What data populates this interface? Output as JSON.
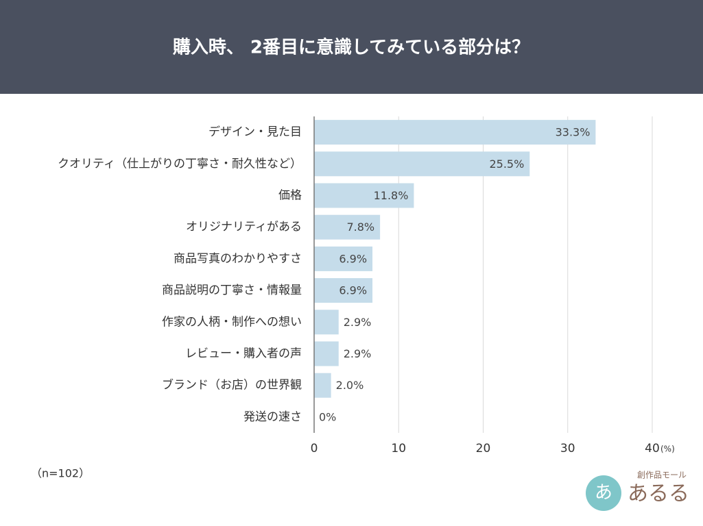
{
  "chart_data": {
    "type": "hbar",
    "title": "購入時、 2番目に意識してみている部分は？",
    "categories": [
      "デザイン・見た目",
      "クオリティ（仕上がりの丁寧さ・耐久性など）",
      "価格",
      "オリジナリティがある",
      "商品写真のわかりやすさ",
      "商品説明の丁寧さ・情報量",
      "作家の人柄・制作への想い",
      "レビュー・購入者の声",
      "ブランド（お店）の世界観",
      "発送の速さ"
    ],
    "values": [
      33.3,
      25.5,
      11.8,
      7.8,
      6.9,
      6.9,
      2.9,
      2.9,
      2.0,
      0
    ],
    "value_labels": [
      "33.3%",
      "25.5%",
      "11.8%",
      "7.8%",
      "6.9%",
      "6.9%",
      "2.9%",
      "2.9%",
      "2.0%",
      "0%"
    ],
    "color": "#c5dcea",
    "xlim": [
      0,
      40
    ],
    "xticks": [
      0,
      10,
      20,
      30,
      40
    ],
    "xlabel": "(%)",
    "grid": true,
    "note": "（n=102）",
    "logo": {
      "tagline": "創作品モール",
      "name": "あるる"
    }
  }
}
